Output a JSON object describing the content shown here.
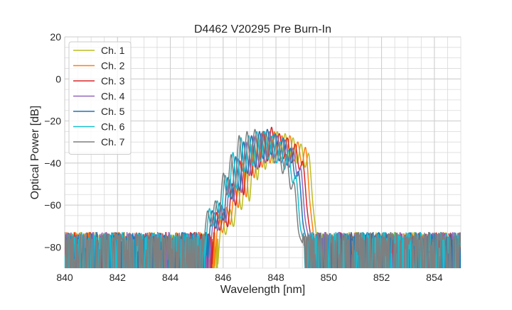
{
  "chart_data": {
    "type": "line",
    "title": "D4462 V20295 Pre Burn-In",
    "xlabel": "Wavelength [nm]",
    "ylabel": "Optical Power [dB]",
    "xlim": [
      840,
      855
    ],
    "ylim": [
      -90,
      20
    ],
    "xticks": [
      840,
      842,
      844,
      846,
      848,
      850,
      852,
      854
    ],
    "yticks": [
      20,
      0,
      -20,
      -40,
      -60,
      -80
    ],
    "x_tick_labels": [
      "840",
      "842",
      "844",
      "846",
      "848",
      "850",
      "852",
      "854"
    ],
    "y_tick_labels": [
      "20",
      "0",
      "−20",
      "−40",
      "−60",
      "−80"
    ],
    "grid": true,
    "minor_grid": true,
    "legend_position": "top-left",
    "noise_floor_db": [
      -90,
      -71
    ],
    "series": [
      {
        "name": "Ch. 1",
        "color": "#bcbd22",
        "x0": 845.8,
        "dx": 0.15,
        "y": [
          -88,
          -66,
          -74,
          -62,
          -70,
          -52,
          -62,
          -42,
          -58,
          -32,
          -48,
          -28,
          -43,
          -26,
          -40,
          -25,
          -38,
          -26,
          -39,
          -28,
          -40,
          -31,
          -42,
          -36,
          -60,
          -76
        ]
      },
      {
        "name": "Ch. 2",
        "color": "#ff7f0e",
        "x0": 845.68,
        "dx": 0.15,
        "y": [
          -89,
          -65,
          -73,
          -61,
          -69,
          -51,
          -61,
          -40,
          -56,
          -31,
          -47,
          -27,
          -42,
          -26,
          -40,
          -25,
          -37,
          -27,
          -38,
          -27,
          -39,
          -30,
          -41,
          -33,
          -58,
          -75
        ]
      },
      {
        "name": "Ch. 3",
        "color": "#d62728",
        "x0": 845.58,
        "dx": 0.15,
        "y": [
          -88,
          -64,
          -72,
          -62,
          -70,
          -50,
          -60,
          -39,
          -55,
          -30,
          -46,
          -27,
          -42,
          -25,
          -39,
          -23,
          -37,
          -26,
          -38,
          -28,
          -40,
          -31,
          -43,
          -40,
          -62,
          -76
        ]
      },
      {
        "name": "Ch. 4",
        "color": "#9467bd",
        "x0": 845.5,
        "dx": 0.15,
        "y": [
          -86,
          -64,
          -72,
          -60,
          -68,
          -48,
          -58,
          -38,
          -54,
          -30,
          -46,
          -27,
          -43,
          -26,
          -40,
          -25,
          -38,
          -27,
          -40,
          -29,
          -42,
          -33,
          -46,
          -43,
          -66,
          -76
        ]
      },
      {
        "name": "Ch. 5",
        "color": "#1f77b4",
        "x0": 845.42,
        "dx": 0.15,
        "y": [
          -85,
          -63,
          -71,
          -59,
          -67,
          -47,
          -57,
          -37,
          -53,
          -30,
          -45,
          -27,
          -42,
          -25,
          -38,
          -24,
          -36,
          -26,
          -39,
          -28,
          -41,
          -33,
          -47,
          -45,
          -68,
          -77
        ]
      },
      {
        "name": "Ch. 6",
        "color": "#17becf",
        "x0": 845.32,
        "dx": 0.15,
        "y": [
          -84,
          -62,
          -70,
          -58,
          -66,
          -46,
          -56,
          -35,
          -52,
          -28,
          -44,
          -27,
          -41,
          -25,
          -39,
          -25,
          -38,
          -27,
          -40,
          -30,
          -43,
          -34,
          -49,
          -47,
          -70,
          -77
        ]
      },
      {
        "name": "Ch. 7",
        "color": "#7f7f7f",
        "x0": 845.25,
        "dx": 0.15,
        "y": [
          -82,
          -63,
          -70,
          -58,
          -66,
          -45,
          -55,
          -36,
          -52,
          -27,
          -44,
          -25,
          -40,
          -24,
          -38,
          -25,
          -38,
          -27,
          -40,
          -31,
          -45,
          -36,
          -52,
          -50,
          -72,
          -78
        ]
      }
    ]
  }
}
